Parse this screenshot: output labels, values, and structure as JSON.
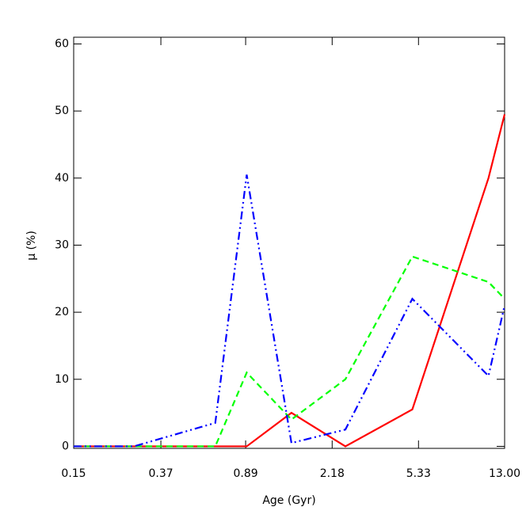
{
  "chart_data": {
    "type": "line",
    "x_label": "Age (Gyr)",
    "y_label": "μ (%)",
    "x": [
      0.15,
      0.28,
      0.65,
      0.9,
      1.43,
      2.5,
      5.0,
      11,
      13
    ],
    "xlim": [
      0.15,
      13
    ],
    "xlog": true,
    "xticks": [
      0.15,
      0.37,
      0.89,
      2.18,
      5.33,
      {
        "value": 13,
        "label": "13.00"
      }
    ],
    "ylim": [
      -0.3,
      61
    ],
    "yticks": [
      0,
      10,
      20,
      30,
      40,
      50,
      60
    ],
    "series": [
      {
        "color": "#ff0000",
        "dash": "solid",
        "values": [
          0,
          0,
          0,
          0,
          5,
          0,
          5.5,
          40,
          49.5
        ]
      },
      {
        "color": "#00ff00",
        "dash": "dashed",
        "values": [
          0,
          0,
          0,
          11,
          4,
          10,
          28.3,
          24.5,
          22
        ]
      },
      {
        "color": "#0000ff",
        "dash": "dash-dot-dot",
        "values": [
          0,
          0,
          3.5,
          40.5,
          0.5,
          2.5,
          22,
          10.5,
          21
        ]
      }
    ]
  }
}
